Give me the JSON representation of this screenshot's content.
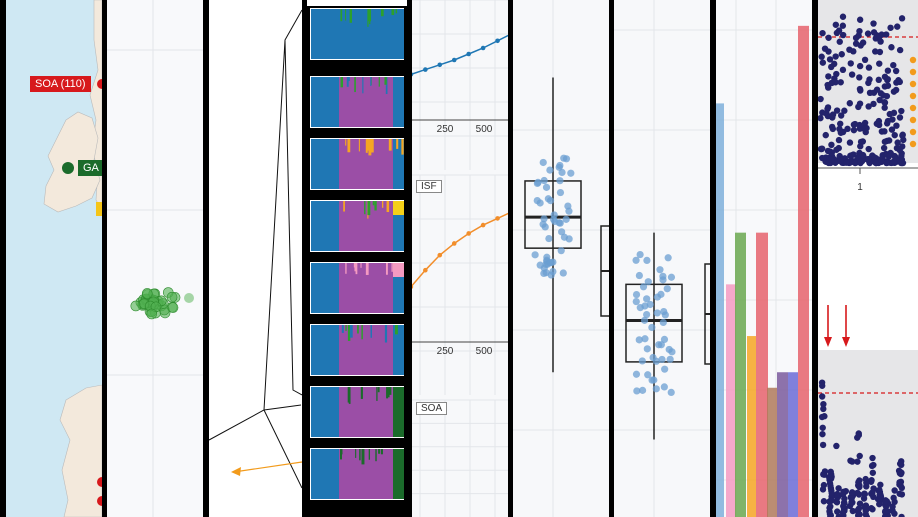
{
  "map": {
    "sea_color": "#cfe8f3",
    "land_color": "#f3e9dc",
    "labels": [
      {
        "text": "SOA (110)",
        "color": "#d7191c"
      },
      {
        "text": "GA",
        "color": "#1b6b2b"
      }
    ]
  },
  "colors": {
    "blue": "#1f77b4",
    "purple": "#9b4ea6",
    "green": "#2ca02c",
    "orange": "#f5a623",
    "pink": "#f49ac1",
    "dkgreen": "#1b6b2b",
    "red": "#e6636c",
    "navy": "#23236b"
  },
  "structure_labels": [
    "ISF",
    "SOA"
  ],
  "chart_data": [
    {
      "type": "line",
      "panels": [
        {
          "x": [
            100,
            150,
            200,
            250,
            300,
            350,
            400,
            450,
            500,
            550
          ],
          "y": [
            0.3,
            0.34,
            0.38,
            0.42,
            0.46,
            0.5,
            0.55,
            0.6,
            0.66,
            0.72
          ],
          "color": "#1f77b4"
        },
        {
          "x": [
            100,
            150,
            200,
            250,
            300,
            350,
            400,
            450,
            500,
            550
          ],
          "y": [
            0.1,
            0.22,
            0.33,
            0.43,
            0.52,
            0.59,
            0.65,
            0.7,
            0.74,
            0.78
          ],
          "color": "#f28e2b"
        }
      ],
      "xticks": [
        "250",
        "500"
      ]
    },
    {
      "type": "scatter",
      "groups": [
        "box1",
        "box2"
      ],
      "box1": {
        "q1": 0.52,
        "median": 0.58,
        "q3": 0.65,
        "min": 0.28,
        "max": 0.85
      },
      "box2": {
        "q1": 0.3,
        "median": 0.38,
        "q3": 0.45,
        "min": 0.15,
        "max": 0.55
      }
    },
    {
      "type": "bar",
      "values": [
        0.8,
        0.45,
        0.55,
        0.35,
        0.55,
        0.25,
        0.28,
        0.95,
        0.28
      ],
      "colors": [
        "#7fb0db",
        "#f49ac1",
        "#6aa84f",
        "#f6a623",
        "#e6636c",
        "#b07a5a",
        "#7a5a9c",
        "#e6636c",
        "#6b6bd6"
      ]
    },
    {
      "type": "scatter",
      "threshold_color": "#d7191c",
      "xticks": [
        "1"
      ]
    }
  ]
}
